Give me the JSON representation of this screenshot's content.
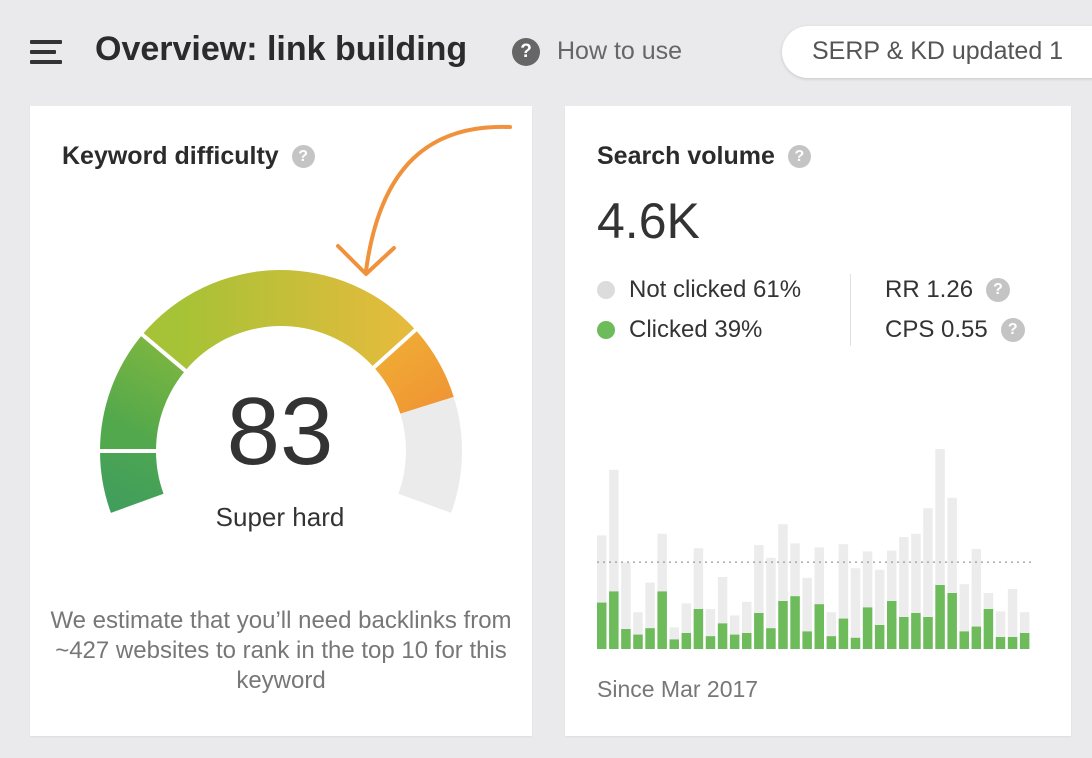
{
  "header": {
    "title": "Overview: link building",
    "help_icon": "?",
    "help_label": "How to use",
    "updated_label": "SERP & KD updated 1"
  },
  "keyword_difficulty": {
    "title": "Keyword difficulty",
    "help_icon": "?",
    "value": "83",
    "label": "Super hard",
    "description": "We estimate that you’ll need backlinks from ~427 websites to rank in the top 10 for this keyword",
    "gauge_level": 0.83,
    "annotation_color": "#f0923c"
  },
  "search_volume": {
    "title": "Search volume",
    "help_icon": "?",
    "value": "4.6K",
    "not_clicked_label": "Not clicked 61%",
    "clicked_label": "Clicked 39%",
    "rr_label": "RR 1.26",
    "cps_label": "CPS 0.55",
    "since_label": "Since Mar 2017"
  },
  "colors": {
    "clicked": "#6dbb5a",
    "not_clicked": "#ececec",
    "track": "#ebebeb",
    "gauge_red": "#f09433"
  },
  "chart_data": {
    "type": "bar",
    "stacked": true,
    "series": [
      {
        "name": "Clicked",
        "values": [
          58,
          72,
          25,
          18,
          26,
          72,
          12,
          20,
          50,
          16,
          32,
          18,
          20,
          45,
          26,
          60,
          66,
          22,
          56,
          16,
          38,
          14,
          52,
          30,
          60,
          40,
          45,
          40,
          80,
          70,
          22,
          28,
          50,
          15,
          15,
          20
        ]
      },
      {
        "name": "Not clicked",
        "values": [
          84,
          152,
          83,
          28,
          57,
          72,
          15,
          37,
          76,
          34,
          58,
          24,
          39,
          85,
          88,
          96,
          66,
          67,
          71,
          30,
          93,
          87,
          70,
          69,
          63,
          100,
          99,
          136,
          170,
          119,
          59,
          97,
          20,
          32,
          60,
          26
        ]
      }
    ],
    "average_line": true,
    "grid": false
  }
}
